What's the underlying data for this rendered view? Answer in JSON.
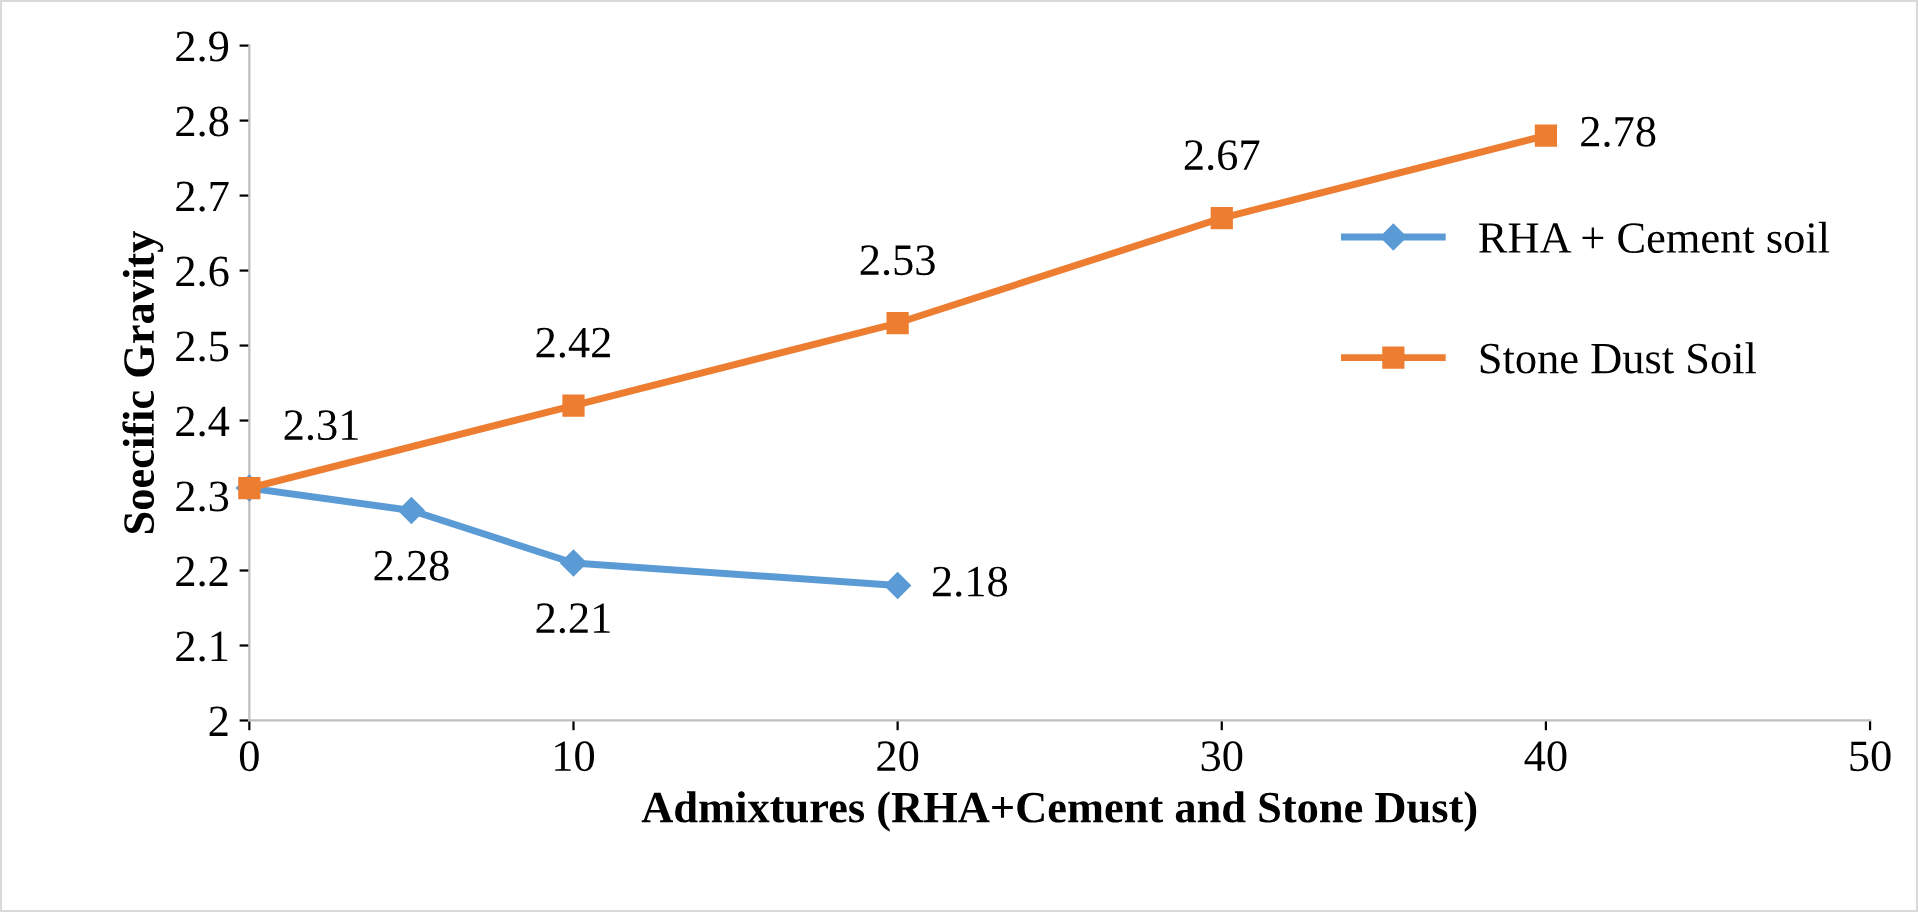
{
  "chart_data": {
    "type": "line",
    "xlabel": "Admixtures (RHA+Cement and Stone Dust)",
    "ylabel": "Soecific Gravity",
    "series": [
      {
        "name": "RHA + Cement soil",
        "color": "#5b9bd5",
        "marker": "diamond",
        "x": [
          0,
          5,
          10,
          20
        ],
        "values": [
          2.31,
          2.28,
          2.21,
          2.18
        ],
        "value_labels": [
          null,
          "2.28",
          "2.21",
          "2.18"
        ]
      },
      {
        "name": "Stone Dust Soil",
        "color": "#ed7d31",
        "marker": "square",
        "x": [
          0,
          10,
          20,
          30,
          40
        ],
        "values": [
          2.31,
          2.42,
          2.53,
          2.67,
          2.78
        ],
        "value_labels": [
          "2.31",
          "2.42",
          "2.53",
          "2.67",
          "2.78"
        ]
      }
    ],
    "xlim": [
      0,
      50
    ],
    "xticks": [
      0,
      10,
      20,
      30,
      40,
      50
    ],
    "ylim": [
      2,
      2.9
    ],
    "yticks": [
      2,
      2.1,
      2.2,
      2.3,
      2.4,
      2.5,
      2.6,
      2.7,
      2.8,
      2.9
    ],
    "grid": false,
    "legend": "right",
    "line_style": "solid"
  }
}
